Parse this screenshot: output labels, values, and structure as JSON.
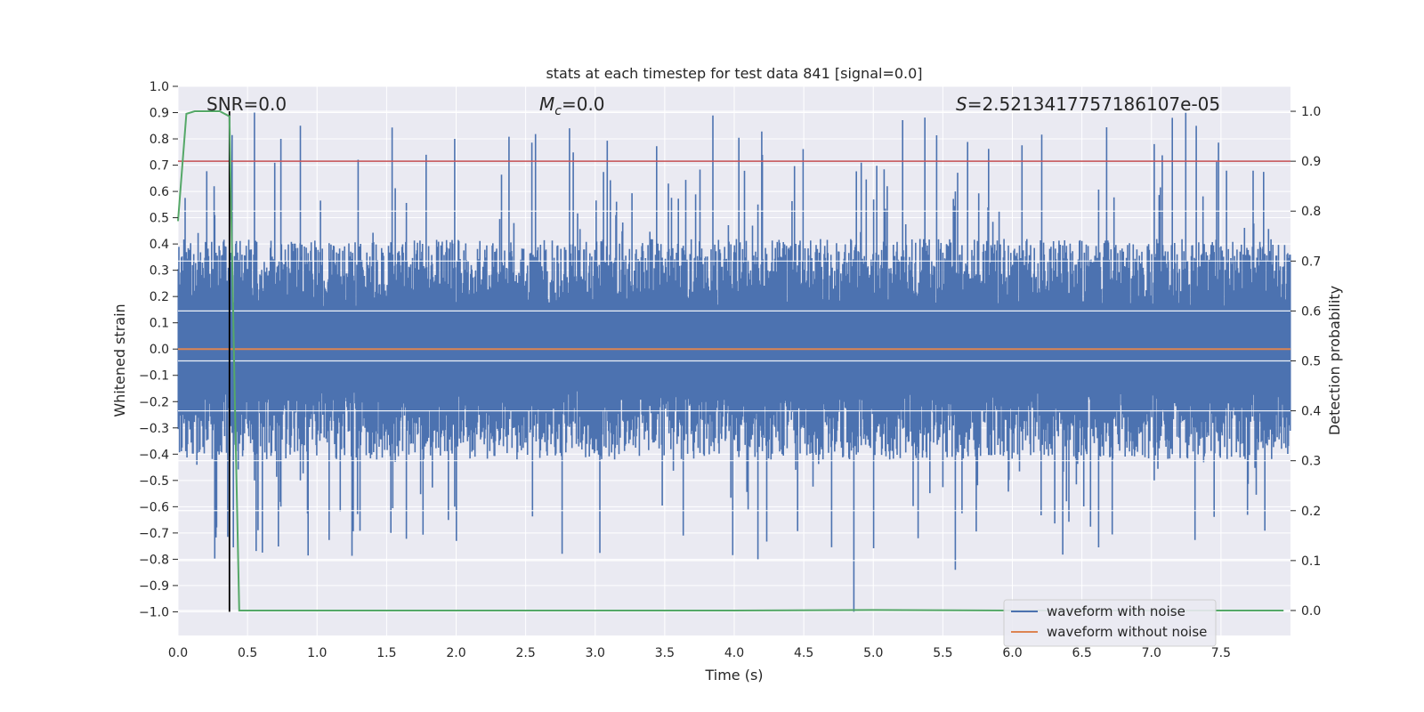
{
  "chart_data": {
    "type": "line",
    "title": "stats at each timestep for test data 841 [signal=0.0]",
    "xlabel": "Time (s)",
    "ylabel": "Whitened strain",
    "y2label": "Detection probability",
    "xlim": [
      0.0,
      8.0
    ],
    "ylim": [
      -1.09,
      1.0
    ],
    "y2lim": [
      -0.05,
      1.05
    ],
    "x_ticks": [
      0.0,
      0.5,
      1.0,
      1.5,
      2.0,
      2.5,
      3.0,
      3.5,
      4.0,
      4.5,
      5.0,
      5.5,
      6.0,
      6.5,
      7.0,
      7.5
    ],
    "x_tick_labels": [
      "0.0",
      "0.5",
      "1.0",
      "1.5",
      "2.0",
      "2.5",
      "3.0",
      "3.5",
      "4.0",
      "4.5",
      "5.0",
      "5.5",
      "6.0",
      "6.5",
      "7.0",
      "7.5"
    ],
    "y_ticks": [
      1.0,
      0.9,
      0.8,
      0.7,
      0.6,
      0.5,
      0.4,
      0.3,
      0.2,
      0.1,
      0.0,
      -0.1,
      -0.2,
      -0.3,
      -0.4,
      -0.5,
      -0.6,
      -0.7,
      -0.8,
      -0.9,
      -1.0
    ],
    "y_tick_labels": [
      "1.0",
      "0.9",
      "0.8",
      "0.7",
      "0.6",
      "0.5",
      "0.4",
      "0.3",
      "0.2",
      "0.1",
      "0.0",
      "−0.1",
      "−0.2",
      "−0.3",
      "−0.4",
      "−0.5",
      "−0.6",
      "−0.7",
      "−0.8",
      "−0.9",
      "−1.0"
    ],
    "y2_ticks": [
      1.0,
      0.9,
      0.8,
      0.7,
      0.6,
      0.5,
      0.4,
      0.3,
      0.2,
      0.1,
      0.0
    ],
    "y2_tick_labels": [
      "1.0",
      "0.9",
      "0.8",
      "0.7",
      "0.6",
      "0.5",
      "0.4",
      "0.3",
      "0.2",
      "0.1",
      "0.0"
    ],
    "annotations": {
      "snr": "SNR=0.0",
      "mc_symbol": "M",
      "mc_sub": "c",
      "mc_value": "=0.0",
      "s_symbol": "S",
      "s_value": "=2.5213417757186107e-05"
    },
    "threshold_y2": 0.9,
    "marker_x": 0.37,
    "noise_envelope": {
      "typical_upper": 0.35,
      "typical_lower": -0.35,
      "peak_upper": 0.9,
      "peak_lower": -1.0
    },
    "series": [
      {
        "name": "waveform with noise",
        "color": "#4c72b0",
        "axis": "left",
        "description_values": "noisy strain, approx within [-1.0, 0.9]"
      },
      {
        "name": "waveform without noise",
        "color": "#dd8452",
        "axis": "left",
        "values_constant": 0.0
      },
      {
        "name": "detection probability",
        "color": "#55a868",
        "axis": "right",
        "x": [
          0.0,
          0.06,
          0.12,
          0.2,
          0.3,
          0.37,
          0.41,
          0.44,
          0.5,
          1.0,
          2.0,
          3.0,
          4.0,
          5.0,
          6.0,
          7.0,
          7.95
        ],
        "values": [
          0.78,
          0.995,
          1.0,
          1.0,
          1.0,
          0.99,
          0.4,
          0.0,
          0.0,
          0.0,
          0.0,
          0.0,
          0.0,
          0.001,
          0.0,
          0.0,
          0.0
        ]
      }
    ],
    "legend": [
      "waveform with noise",
      "waveform without noise"
    ],
    "legend_placement": "lower-right",
    "colors": {
      "background": "#eaeaf2",
      "grid": "#ffffff",
      "noise": "#4c72b0",
      "clean": "#dd8452",
      "prob": "#55a868",
      "threshold": "#c44e52",
      "marker": "#000000"
    }
  }
}
